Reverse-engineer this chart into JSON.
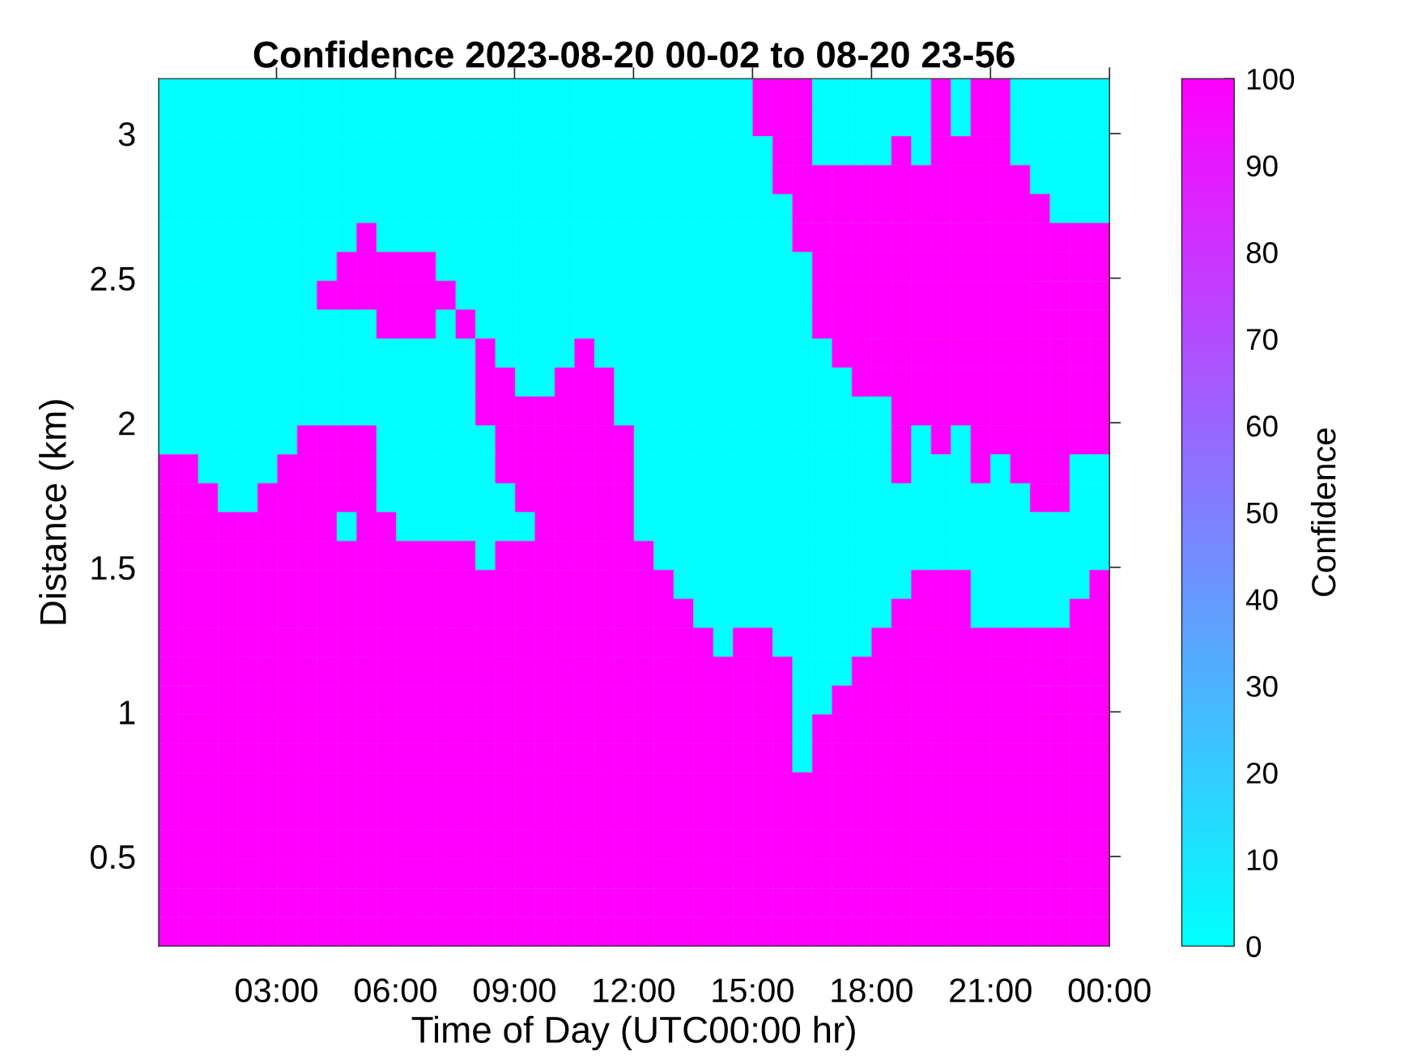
{
  "chart_data": {
    "type": "heatmap",
    "title": "Confidence 2023-08-20 00-02 to 08-20 23-56",
    "xlabel": "Time of Day (UTC00:00 hr)",
    "ylabel": "Distance (km)",
    "clabel": "Confidence",
    "xlim": [
      0.03,
      24
    ],
    "xticks": [
      {
        "value": 3,
        "label": "03:00"
      },
      {
        "value": 6,
        "label": "06:00"
      },
      {
        "value": 9,
        "label": "09:00"
      },
      {
        "value": 12,
        "label": "12:00"
      },
      {
        "value": 15,
        "label": "15:00"
      },
      {
        "value": 18,
        "label": "18:00"
      },
      {
        "value": 21,
        "label": "21:00"
      },
      {
        "value": 24,
        "label": "00:00"
      }
    ],
    "ylim": [
      0.19,
      3.19
    ],
    "yticks": [
      0.5,
      1,
      1.5,
      2,
      2.5,
      3
    ],
    "clim": [
      0,
      100
    ],
    "cticks": [
      0,
      10,
      20,
      30,
      40,
      50,
      60,
      70,
      80,
      90,
      100
    ],
    "cells": [
      [
        0,
        0,
        0,
        0,
        0,
        0,
        0,
        0,
        0,
        0,
        0,
        0,
        0,
        0,
        0,
        0,
        0,
        0,
        0,
        0,
        0,
        0,
        0,
        0,
        0,
        0,
        0,
        0,
        0,
        0,
        100,
        100,
        100,
        0,
        0,
        0,
        0,
        0,
        0,
        100,
        0,
        100,
        100,
        0,
        0,
        0,
        0,
        0
      ],
      [
        0,
        0,
        0,
        0,
        0,
        0,
        0,
        0,
        0,
        0,
        0,
        0,
        0,
        0,
        0,
        0,
        0,
        0,
        0,
        0,
        0,
        0,
        0,
        0,
        0,
        0,
        0,
        0,
        0,
        0,
        100,
        100,
        100,
        0,
        0,
        0,
        0,
        0,
        0,
        100,
        0,
        100,
        100,
        0,
        0,
        0,
        0,
        0
      ],
      [
        0,
        0,
        0,
        0,
        0,
        0,
        0,
        0,
        0,
        0,
        0,
        0,
        0,
        0,
        0,
        0,
        0,
        0,
        0,
        0,
        0,
        0,
        0,
        0,
        0,
        0,
        0,
        0,
        0,
        0,
        0,
        100,
        100,
        0,
        0,
        0,
        0,
        100,
        0,
        100,
        100,
        100,
        100,
        0,
        0,
        0,
        0,
        0
      ],
      [
        0,
        0,
        0,
        0,
        0,
        0,
        0,
        0,
        0,
        0,
        0,
        0,
        0,
        0,
        0,
        0,
        0,
        0,
        0,
        0,
        0,
        0,
        0,
        0,
        0,
        0,
        0,
        0,
        0,
        0,
        0,
        100,
        100,
        100,
        100,
        100,
        100,
        100,
        100,
        100,
        100,
        100,
        100,
        100,
        0,
        0,
        0,
        0
      ],
      [
        0,
        0,
        0,
        0,
        0,
        0,
        0,
        0,
        0,
        0,
        0,
        0,
        0,
        0,
        0,
        0,
        0,
        0,
        0,
        0,
        0,
        0,
        0,
        0,
        0,
        0,
        0,
        0,
        0,
        0,
        0,
        0,
        100,
        100,
        100,
        100,
        100,
        100,
        100,
        100,
        100,
        100,
        100,
        100,
        100,
        0,
        0,
        0
      ],
      [
        0,
        0,
        0,
        0,
        0,
        0,
        0,
        0,
        0,
        0,
        100,
        0,
        0,
        0,
        0,
        0,
        0,
        0,
        0,
        0,
        0,
        0,
        0,
        0,
        0,
        0,
        0,
        0,
        0,
        0,
        0,
        0,
        100,
        100,
        100,
        100,
        100,
        100,
        100,
        100,
        100,
        100,
        100,
        100,
        100,
        100,
        100,
        100
      ],
      [
        0,
        0,
        0,
        0,
        0,
        0,
        0,
        0,
        0,
        100,
        100,
        100,
        100,
        100,
        0,
        0,
        0,
        0,
        0,
        0,
        0,
        0,
        0,
        0,
        0,
        0,
        0,
        0,
        0,
        0,
        0,
        0,
        0,
        100,
        100,
        100,
        100,
        100,
        100,
        100,
        100,
        100,
        100,
        100,
        100,
        100,
        100,
        100
      ],
      [
        0,
        0,
        0,
        0,
        0,
        0,
        0,
        0,
        100,
        100,
        100,
        100,
        100,
        100,
        100,
        0,
        0,
        0,
        0,
        0,
        0,
        0,
        0,
        0,
        0,
        0,
        0,
        0,
        0,
        0,
        0,
        0,
        0,
        100,
        100,
        100,
        100,
        100,
        100,
        100,
        100,
        100,
        100,
        100,
        100,
        100,
        100,
        100
      ],
      [
        0,
        0,
        0,
        0,
        0,
        0,
        0,
        0,
        0,
        0,
        0,
        100,
        100,
        100,
        0,
        100,
        0,
        0,
        0,
        0,
        0,
        0,
        0,
        0,
        0,
        0,
        0,
        0,
        0,
        0,
        0,
        0,
        0,
        100,
        100,
        100,
        100,
        100,
        100,
        100,
        100,
        100,
        100,
        100,
        100,
        100,
        100,
        100
      ],
      [
        0,
        0,
        0,
        0,
        0,
        0,
        0,
        0,
        0,
        0,
        0,
        0,
        0,
        0,
        0,
        0,
        100,
        0,
        0,
        0,
        0,
        100,
        0,
        0,
        0,
        0,
        0,
        0,
        0,
        0,
        0,
        0,
        0,
        0,
        100,
        100,
        100,
        100,
        100,
        100,
        100,
        100,
        100,
        100,
        100,
        100,
        100,
        100
      ],
      [
        0,
        0,
        0,
        0,
        0,
        0,
        0,
        0,
        0,
        0,
        0,
        0,
        0,
        0,
        0,
        0,
        100,
        100,
        0,
        0,
        100,
        100,
        100,
        0,
        0,
        0,
        0,
        0,
        0,
        0,
        0,
        0,
        0,
        0,
        0,
        100,
        100,
        100,
        100,
        100,
        100,
        100,
        100,
        100,
        100,
        100,
        100,
        100
      ],
      [
        0,
        0,
        0,
        0,
        0,
        0,
        0,
        0,
        0,
        0,
        0,
        0,
        0,
        0,
        0,
        0,
        100,
        100,
        100,
        100,
        100,
        100,
        100,
        0,
        0,
        0,
        0,
        0,
        0,
        0,
        0,
        0,
        0,
        0,
        0,
        0,
        0,
        100,
        100,
        100,
        100,
        100,
        100,
        100,
        100,
        100,
        100,
        100
      ],
      [
        0,
        0,
        0,
        0,
        0,
        0,
        0,
        100,
        100,
        100,
        100,
        0,
        0,
        0,
        0,
        0,
        0,
        100,
        100,
        100,
        100,
        100,
        100,
        100,
        0,
        0,
        0,
        0,
        0,
        0,
        0,
        0,
        0,
        0,
        0,
        0,
        0,
        100,
        0,
        100,
        0,
        100,
        100,
        100,
        100,
        100,
        100,
        100
      ],
      [
        100,
        100,
        0,
        0,
        0,
        0,
        100,
        100,
        100,
        100,
        100,
        0,
        0,
        0,
        0,
        0,
        0,
        100,
        100,
        100,
        100,
        100,
        100,
        100,
        0,
        0,
        0,
        0,
        0,
        0,
        0,
        0,
        0,
        0,
        0,
        0,
        0,
        100,
        0,
        0,
        0,
        100,
        0,
        100,
        100,
        100,
        0,
        0
      ],
      [
        100,
        100,
        100,
        0,
        0,
        100,
        100,
        100,
        100,
        100,
        100,
        0,
        0,
        0,
        0,
        0,
        0,
        0,
        100,
        100,
        100,
        100,
        100,
        100,
        0,
        0,
        0,
        0,
        0,
        0,
        0,
        0,
        0,
        0,
        0,
        0,
        0,
        0,
        0,
        0,
        0,
        0,
        0,
        0,
        100,
        100,
        0,
        0
      ],
      [
        100,
        100,
        100,
        100,
        100,
        100,
        100,
        100,
        100,
        0,
        100,
        100,
        0,
        0,
        0,
        0,
        0,
        0,
        0,
        100,
        100,
        100,
        100,
        100,
        0,
        0,
        0,
        0,
        0,
        0,
        0,
        0,
        0,
        0,
        0,
        0,
        0,
        0,
        0,
        0,
        0,
        0,
        0,
        0,
        0,
        0,
        0,
        0
      ],
      [
        100,
        100,
        100,
        100,
        100,
        100,
        100,
        100,
        100,
        100,
        100,
        100,
        100,
        100,
        100,
        100,
        0,
        100,
        100,
        100,
        100,
        100,
        100,
        100,
        100,
        0,
        0,
        0,
        0,
        0,
        0,
        0,
        0,
        0,
        0,
        0,
        0,
        0,
        0,
        0,
        0,
        0,
        0,
        0,
        0,
        0,
        0,
        0
      ],
      [
        100,
        100,
        100,
        100,
        100,
        100,
        100,
        100,
        100,
        100,
        100,
        100,
        100,
        100,
        100,
        100,
        100,
        100,
        100,
        100,
        100,
        100,
        100,
        100,
        100,
        100,
        0,
        0,
        0,
        0,
        0,
        0,
        0,
        0,
        0,
        0,
        0,
        0,
        100,
        100,
        100,
        0,
        0,
        0,
        0,
        0,
        0,
        100
      ],
      [
        100,
        100,
        100,
        100,
        100,
        100,
        100,
        100,
        100,
        100,
        100,
        100,
        100,
        100,
        100,
        100,
        100,
        100,
        100,
        100,
        100,
        100,
        100,
        100,
        100,
        100,
        100,
        0,
        0,
        0,
        0,
        0,
        0,
        0,
        0,
        0,
        0,
        100,
        100,
        100,
        100,
        0,
        0,
        0,
        0,
        0,
        100,
        100
      ],
      [
        100,
        100,
        100,
        100,
        100,
        100,
        100,
        100,
        100,
        100,
        100,
        100,
        100,
        100,
        100,
        100,
        100,
        100,
        100,
        100,
        100,
        100,
        100,
        100,
        100,
        100,
        100,
        100,
        0,
        100,
        100,
        0,
        0,
        0,
        0,
        0,
        100,
        100,
        100,
        100,
        100,
        100,
        100,
        100,
        100,
        100,
        100,
        100
      ],
      [
        100,
        100,
        100,
        100,
        100,
        100,
        100,
        100,
        100,
        100,
        100,
        100,
        100,
        100,
        100,
        100,
        100,
        100,
        100,
        100,
        100,
        100,
        100,
        100,
        100,
        100,
        100,
        100,
        100,
        100,
        100,
        100,
        0,
        0,
        0,
        100,
        100,
        100,
        100,
        100,
        100,
        100,
        100,
        100,
        100,
        100,
        100,
        100
      ],
      [
        100,
        100,
        100,
        100,
        100,
        100,
        100,
        100,
        100,
        100,
        100,
        100,
        100,
        100,
        100,
        100,
        100,
        100,
        100,
        100,
        100,
        100,
        100,
        100,
        100,
        100,
        100,
        100,
        100,
        100,
        100,
        100,
        0,
        0,
        100,
        100,
        100,
        100,
        100,
        100,
        100,
        100,
        100,
        100,
        100,
        100,
        100,
        100
      ],
      [
        100,
        100,
        100,
        100,
        100,
        100,
        100,
        100,
        100,
        100,
        100,
        100,
        100,
        100,
        100,
        100,
        100,
        100,
        100,
        100,
        100,
        100,
        100,
        100,
        100,
        100,
        100,
        100,
        100,
        100,
        100,
        100,
        0,
        100,
        100,
        100,
        100,
        100,
        100,
        100,
        100,
        100,
        100,
        100,
        100,
        100,
        100,
        100
      ],
      [
        100,
        100,
        100,
        100,
        100,
        100,
        100,
        100,
        100,
        100,
        100,
        100,
        100,
        100,
        100,
        100,
        100,
        100,
        100,
        100,
        100,
        100,
        100,
        100,
        100,
        100,
        100,
        100,
        100,
        100,
        100,
        100,
        0,
        100,
        100,
        100,
        100,
        100,
        100,
        100,
        100,
        100,
        100,
        100,
        100,
        100,
        100,
        100
      ],
      [
        100,
        100,
        100,
        100,
        100,
        100,
        100,
        100,
        100,
        100,
        100,
        100,
        100,
        100,
        100,
        100,
        100,
        100,
        100,
        100,
        100,
        100,
        100,
        100,
        100,
        100,
        100,
        100,
        100,
        100,
        100,
        100,
        100,
        100,
        100,
        100,
        100,
        100,
        100,
        100,
        100,
        100,
        100,
        100,
        100,
        100,
        100,
        100
      ],
      [
        100,
        100,
        100,
        100,
        100,
        100,
        100,
        100,
        100,
        100,
        100,
        100,
        100,
        100,
        100,
        100,
        100,
        100,
        100,
        100,
        100,
        100,
        100,
        100,
        100,
        100,
        100,
        100,
        100,
        100,
        100,
        100,
        100,
        100,
        100,
        100,
        100,
        100,
        100,
        100,
        100,
        100,
        100,
        100,
        100,
        100,
        100,
        100
      ],
      [
        100,
        100,
        100,
        100,
        100,
        100,
        100,
        100,
        100,
        100,
        100,
        100,
        100,
        100,
        100,
        100,
        100,
        100,
        100,
        100,
        100,
        100,
        100,
        100,
        100,
        100,
        100,
        100,
        100,
        100,
        100,
        100,
        100,
        100,
        100,
        100,
        100,
        100,
        100,
        100,
        100,
        100,
        100,
        100,
        100,
        100,
        100,
        100
      ],
      [
        100,
        100,
        100,
        100,
        100,
        100,
        100,
        100,
        100,
        100,
        100,
        100,
        100,
        100,
        100,
        100,
        100,
        100,
        100,
        100,
        100,
        100,
        100,
        100,
        100,
        100,
        100,
        100,
        100,
        100,
        100,
        100,
        100,
        100,
        100,
        100,
        100,
        100,
        100,
        100,
        100,
        100,
        100,
        100,
        100,
        100,
        100,
        100
      ],
      [
        100,
        100,
        100,
        100,
        100,
        100,
        100,
        100,
        100,
        100,
        100,
        100,
        100,
        100,
        100,
        100,
        100,
        100,
        100,
        100,
        100,
        100,
        100,
        100,
        100,
        100,
        100,
        100,
        100,
        100,
        100,
        100,
        100,
        100,
        100,
        100,
        100,
        100,
        100,
        100,
        100,
        100,
        100,
        100,
        100,
        100,
        100,
        100
      ],
      [
        100,
        100,
        100,
        100,
        100,
        100,
        100,
        100,
        100,
        100,
        100,
        100,
        100,
        100,
        100,
        100,
        100,
        100,
        100,
        100,
        100,
        100,
        100,
        100,
        100,
        100,
        100,
        100,
        100,
        100,
        100,
        100,
        100,
        100,
        100,
        100,
        100,
        100,
        100,
        100,
        100,
        100,
        100,
        100,
        100,
        100,
        100,
        100
      ]
    ]
  }
}
